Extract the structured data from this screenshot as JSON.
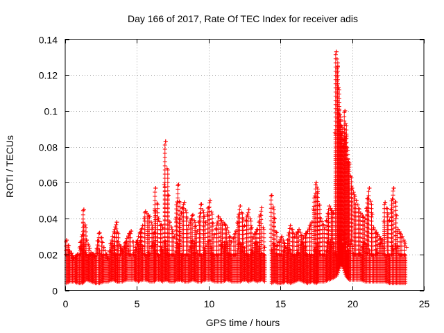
{
  "chart_data": {
    "type": "scatter",
    "title": "Day 166 of 2017, Rate Of TEC Index for receiver adis",
    "xlabel": "GPS time / hours",
    "ylabel": "ROTI / TECUs",
    "xlim": [
      0,
      25
    ],
    "ylim": [
      0,
      0.14
    ],
    "x_ticks": [
      0,
      5,
      10,
      15,
      20,
      25
    ],
    "x_tick_labels": [
      "0",
      "5",
      "10",
      "15",
      "20",
      "25"
    ],
    "y_ticks": [
      0,
      0.02,
      0.04,
      0.06,
      0.08,
      0.1,
      0.12,
      0.14
    ],
    "y_tick_labels": [
      "0",
      "0.02",
      "0.04",
      "0.06",
      "0.08",
      "0.1",
      "0.12",
      "0.14"
    ],
    "grid": true,
    "marker": "+",
    "marker_color": "#ff0000",
    "series": [
      {
        "name": "ROTI",
        "x": [
          0.1,
          0.3,
          0.6,
          0.9,
          1.2,
          1.3,
          1.5,
          1.8,
          2.1,
          2.4,
          2.7,
          3.0,
          3.3,
          3.6,
          3.7,
          4.0,
          4.3,
          4.6,
          4.8,
          5.1,
          5.4,
          5.6,
          5.9,
          6.2,
          6.3,
          6.5,
          6.8,
          7.0,
          7.3,
          7.6,
          7.9,
          8.0,
          8.3,
          8.6,
          8.9,
          9.2,
          9.5,
          9.8,
          10.1,
          10.4,
          10.7,
          11.0,
          11.3,
          11.6,
          11.9,
          12.2,
          12.5,
          12.8,
          13.1,
          13.4,
          13.7,
          13.9,
          14.4,
          14.6,
          14.8,
          15.1,
          15.4,
          15.7,
          16.0,
          16.3,
          16.6,
          16.9,
          17.2,
          17.5,
          17.6,
          17.8,
          18.1,
          18.4,
          18.7,
          18.9,
          19.0,
          19.1,
          19.2,
          19.3,
          19.4,
          19.5,
          19.6,
          19.7,
          19.8,
          20.0,
          20.3,
          20.6,
          20.9,
          21.2,
          21.5,
          21.8,
          22.1,
          22.3,
          22.6,
          22.9,
          23.2,
          23.5,
          23.8
        ],
        "y": [
          0.028,
          0.022,
          0.018,
          0.02,
          0.031,
          0.045,
          0.028,
          0.021,
          0.019,
          0.032,
          0.024,
          0.018,
          0.03,
          0.038,
          0.027,
          0.022,
          0.029,
          0.033,
          0.021,
          0.03,
          0.036,
          0.044,
          0.041,
          0.032,
          0.057,
          0.04,
          0.035,
          0.083,
          0.038,
          0.03,
          0.059,
          0.04,
          0.049,
          0.036,
          0.042,
          0.033,
          0.048,
          0.038,
          0.05,
          0.031,
          0.041,
          0.038,
          0.035,
          0.027,
          0.033,
          0.047,
          0.036,
          0.045,
          0.03,
          0.034,
          0.046,
          0.024,
          0.053,
          0.04,
          0.025,
          0.03,
          0.024,
          0.036,
          0.03,
          0.034,
          0.029,
          0.033,
          0.038,
          0.06,
          0.055,
          0.04,
          0.035,
          0.047,
          0.043,
          0.133,
          0.125,
          0.101,
          0.095,
          0.088,
          0.08,
          0.1,
          0.086,
          0.073,
          0.07,
          0.057,
          0.05,
          0.043,
          0.04,
          0.057,
          0.035,
          0.031,
          0.028,
          0.049,
          0.039,
          0.057,
          0.034,
          0.03,
          0.024
        ],
        "lower": [
          0.004,
          0.005,
          0.005,
          0.004,
          0.004,
          0.005,
          0.006,
          0.005,
          0.004,
          0.004,
          0.005,
          0.005,
          0.006,
          0.005,
          0.005,
          0.005,
          0.006,
          0.006,
          0.006,
          0.005,
          0.006,
          0.006,
          0.005,
          0.005,
          0.006,
          0.006,
          0.005,
          0.006,
          0.005,
          0.005,
          0.006,
          0.006,
          0.005,
          0.005,
          0.006,
          0.005,
          0.005,
          0.006,
          0.006,
          0.005,
          0.005,
          0.005,
          0.006,
          0.005,
          0.005,
          0.005,
          0.006,
          0.005,
          0.006,
          0.005,
          0.006,
          0.005,
          0.004,
          0.005,
          0.004,
          0.004,
          0.005,
          0.004,
          0.005,
          0.006,
          0.005,
          0.004,
          0.005,
          0.004,
          0.005,
          0.005,
          0.005,
          0.006,
          0.007,
          0.008,
          0.01,
          0.012,
          0.015,
          0.014,
          0.012,
          0.01,
          0.008,
          0.007,
          0.006,
          0.006,
          0.006,
          0.006,
          0.005,
          0.005,
          0.005,
          0.005,
          0.005,
          0.005,
          0.004,
          0.004,
          0.004,
          0.004,
          0.004
        ]
      }
    ]
  }
}
